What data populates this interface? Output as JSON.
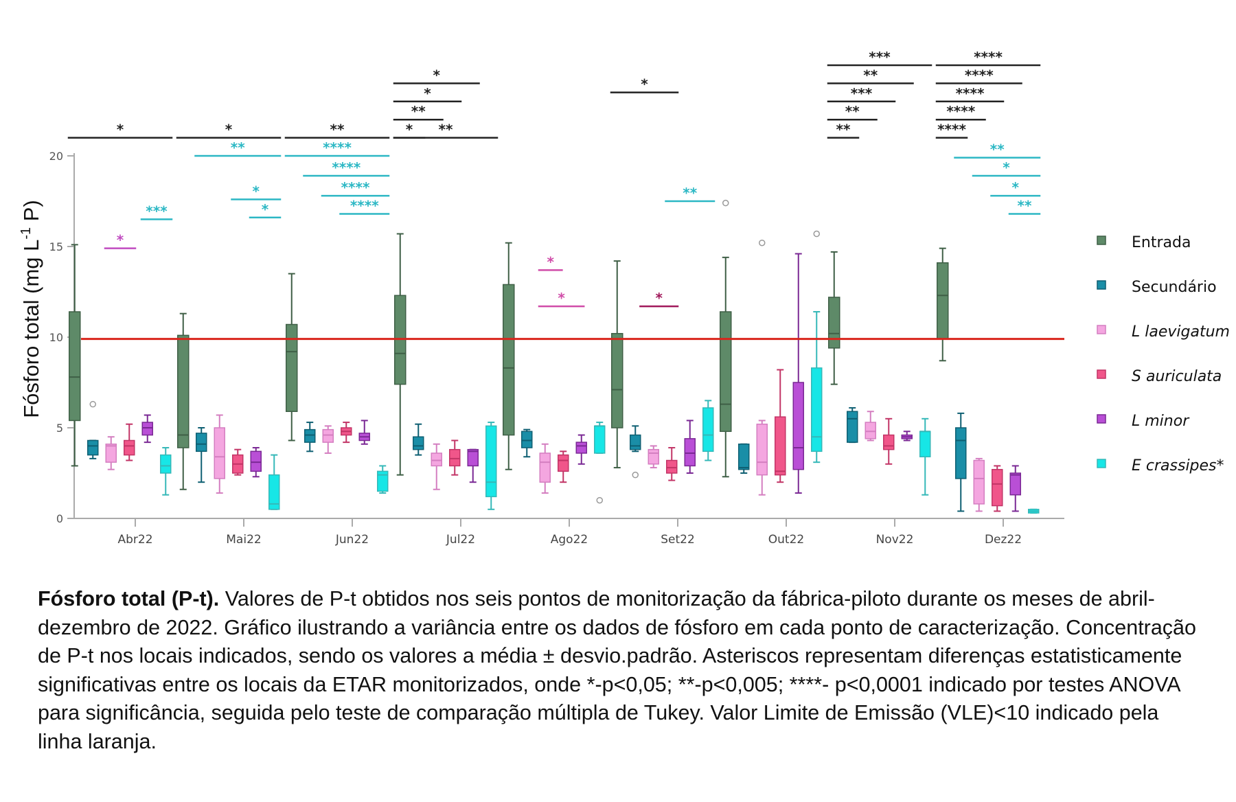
{
  "chart_data": {
    "type": "boxplot",
    "title": "",
    "ylabel": "Fósforo total (mg L-1 P)",
    "ylabel_parts": {
      "main": "Fósforo total (mg L",
      "sup": "-1",
      "end": " P)"
    },
    "xlabel": "",
    "ylim": [
      0,
      20
    ],
    "yticks": [
      0,
      5,
      10,
      15,
      20
    ],
    "grid": false,
    "legend_position": "right",
    "reference_line": {
      "value": 9.9,
      "label": "VLE<10",
      "color": "#d9261c"
    },
    "categories": [
      "Abr22",
      "Mai22",
      "Jun22",
      "Jul22",
      "Ago22",
      "Set22",
      "Out22",
      "Nov22",
      "Dez22"
    ],
    "series": [
      {
        "name": "Entrada",
        "italic": false,
        "color": "#5e8a68",
        "stroke": "#3f5f46",
        "boxes": [
          {
            "min": 2.9,
            "q1": 5.4,
            "median": 7.8,
            "q3": 11.4,
            "max": 15.1
          },
          {
            "min": 1.6,
            "q1": 3.9,
            "median": 4.6,
            "q3": 10.1,
            "max": 11.3
          },
          {
            "min": 4.3,
            "q1": 5.9,
            "median": 9.2,
            "q3": 10.7,
            "max": 13.5
          },
          {
            "min": 2.4,
            "q1": 7.4,
            "median": 9.1,
            "q3": 12.3,
            "max": 15.7
          },
          {
            "min": 2.7,
            "q1": 4.6,
            "median": 8.3,
            "q3": 12.9,
            "max": 15.2
          },
          {
            "min": 2.8,
            "q1": 5.0,
            "median": 7.1,
            "q3": 10.2,
            "max": 14.2
          },
          {
            "min": 2.3,
            "q1": 4.8,
            "median": 6.3,
            "q3": 11.4,
            "max": 14.4
          },
          {
            "min": 7.4,
            "q1": 9.4,
            "median": 10.2,
            "q3": 12.2,
            "max": 14.7
          },
          {
            "min": 8.7,
            "q1": 9.9,
            "median": 12.3,
            "q3": 14.1,
            "max": 14.9
          }
        ],
        "outliers": [
          [],
          [],
          [],
          [],
          [],
          [],
          [
            17.4
          ],
          [],
          []
        ]
      },
      {
        "name": "Secundário",
        "italic": false,
        "color": "#1a8ea7",
        "stroke": "#0e5f72",
        "boxes": [
          {
            "min": 3.3,
            "q1": 3.5,
            "median": 4.0,
            "q3": 4.3,
            "max": 4.3
          },
          {
            "min": 2.0,
            "q1": 3.7,
            "median": 4.1,
            "q3": 4.7,
            "max": 5.0
          },
          {
            "min": 3.7,
            "q1": 4.2,
            "median": 4.6,
            "q3": 4.9,
            "max": 5.3
          },
          {
            "min": 3.5,
            "q1": 3.8,
            "median": 4.0,
            "q3": 4.5,
            "max": 5.2
          },
          {
            "min": 3.4,
            "q1": 3.9,
            "median": 4.3,
            "q3": 4.8,
            "max": 4.9
          },
          {
            "min": 3.7,
            "q1": 3.8,
            "median": 4.0,
            "q3": 4.6,
            "max": 5.1
          },
          {
            "min": 2.5,
            "q1": 2.7,
            "median": 2.8,
            "q3": 4.1,
            "max": 4.1
          },
          {
            "min": 4.2,
            "q1": 4.2,
            "median": 5.5,
            "q3": 5.9,
            "max": 6.1
          },
          {
            "min": 0.4,
            "q1": 2.2,
            "median": 4.3,
            "q3": 5.0,
            "max": 5.8
          }
        ],
        "outliers": [
          [
            6.3
          ],
          [],
          [],
          [],
          [],
          [
            2.4
          ],
          [],
          [],
          []
        ]
      },
      {
        "name": "L laevigatum",
        "italic": true,
        "color": "#f4a6e0",
        "stroke": "#d47ec0",
        "boxes": [
          {
            "min": 2.7,
            "q1": 3.1,
            "median": 4.0,
            "q3": 4.1,
            "max": 4.5
          },
          {
            "min": 1.4,
            "q1": 2.2,
            "median": 3.4,
            "q3": 5.0,
            "max": 5.7
          },
          {
            "min": 3.6,
            "q1": 4.2,
            "median": 4.6,
            "q3": 4.9,
            "max": 5.1
          },
          {
            "min": 1.6,
            "q1": 2.9,
            "median": 3.2,
            "q3": 3.6,
            "max": 4.1
          },
          {
            "min": 1.4,
            "q1": 2.0,
            "median": 3.1,
            "q3": 3.6,
            "max": 4.1
          },
          {
            "min": 2.8,
            "q1": 3.0,
            "median": 3.6,
            "q3": 3.8,
            "max": 4.0
          },
          {
            "min": 1.3,
            "q1": 2.4,
            "median": 3.1,
            "q3": 5.2,
            "max": 5.4
          },
          {
            "min": 4.3,
            "q1": 4.4,
            "median": 4.8,
            "q3": 5.3,
            "max": 5.9
          },
          {
            "min": 0.4,
            "q1": 0.8,
            "median": 2.2,
            "q3": 3.2,
            "max": 3.3
          }
        ],
        "outliers": [
          [],
          [],
          [],
          [],
          [],
          [],
          [
            15.2
          ],
          [],
          []
        ]
      },
      {
        "name": "S auriculata",
        "italic": true,
        "color": "#f0568a",
        "stroke": "#c23466",
        "boxes": [
          {
            "min": 3.2,
            "q1": 3.5,
            "median": 4.0,
            "q3": 4.3,
            "max": 5.2
          },
          {
            "min": 2.4,
            "q1": 2.5,
            "median": 3.0,
            "q3": 3.5,
            "max": 3.8
          },
          {
            "min": 4.2,
            "q1": 4.6,
            "median": 4.8,
            "q3": 5.0,
            "max": 5.3
          },
          {
            "min": 2.4,
            "q1": 2.9,
            "median": 3.3,
            "q3": 3.8,
            "max": 4.3
          },
          {
            "min": 2.0,
            "q1": 2.6,
            "median": 3.2,
            "q3": 3.5,
            "max": 3.7
          },
          {
            "min": 2.1,
            "q1": 2.5,
            "median": 2.8,
            "q3": 3.2,
            "max": 3.9
          },
          {
            "min": 2.0,
            "q1": 2.4,
            "median": 2.6,
            "q3": 5.6,
            "max": 8.2
          },
          {
            "min": 3.0,
            "q1": 3.8,
            "median": 4.0,
            "q3": 4.6,
            "max": 5.5
          },
          {
            "min": 0.4,
            "q1": 0.7,
            "median": 1.9,
            "q3": 2.7,
            "max": 2.9
          }
        ],
        "outliers": [
          [],
          [],
          [],
          [],
          [],
          [],
          [],
          [],
          []
        ]
      },
      {
        "name": "L minor",
        "italic": true,
        "color": "#b94fd6",
        "stroke": "#7a2894",
        "boxes": [
          {
            "min": 4.2,
            "q1": 4.6,
            "median": 5.0,
            "q3": 5.3,
            "max": 5.7
          },
          {
            "min": 2.3,
            "q1": 2.6,
            "median": 3.1,
            "q3": 3.7,
            "max": 3.9
          },
          {
            "min": 4.1,
            "q1": 4.3,
            "median": 4.5,
            "q3": 4.7,
            "max": 5.4
          },
          {
            "min": 2.0,
            "q1": 2.9,
            "median": 3.7,
            "q3": 3.8,
            "max": 3.8
          },
          {
            "min": 3.0,
            "q1": 3.6,
            "median": 4.0,
            "q3": 4.2,
            "max": 4.6
          },
          {
            "min": 2.5,
            "q1": 2.9,
            "median": 3.6,
            "q3": 4.4,
            "max": 5.4
          },
          {
            "min": 1.4,
            "q1": 2.7,
            "median": 3.9,
            "q3": 7.5,
            "max": 14.6
          },
          {
            "min": 4.3,
            "q1": 4.4,
            "median": 4.5,
            "q3": 4.6,
            "max": 4.8
          },
          {
            "min": 0.4,
            "q1": 1.3,
            "median": 2.4,
            "q3": 2.5,
            "max": 2.9
          }
        ],
        "outliers": [
          [],
          [],
          [],
          [],
          [],
          [],
          [],
          [],
          []
        ]
      },
      {
        "name": "E crassipes*",
        "italic": true,
        "color": "#17e6e6",
        "stroke": "#35b8b8",
        "boxes": [
          {
            "min": 1.3,
            "q1": 2.5,
            "median": 2.9,
            "q3": 3.5,
            "max": 3.9
          },
          {
            "min": 0.5,
            "q1": 0.5,
            "median": 0.8,
            "q3": 2.4,
            "max": 3.5
          },
          {
            "min": 1.4,
            "q1": 1.5,
            "median": 2.4,
            "q3": 2.6,
            "max": 2.9
          },
          {
            "min": 0.5,
            "q1": 1.2,
            "median": 2.0,
            "q3": 5.1,
            "max": 5.3
          },
          {
            "min": 3.6,
            "q1": 3.6,
            "median": 5.1,
            "q3": 5.1,
            "max": 5.3
          },
          {
            "min": 3.2,
            "q1": 3.7,
            "median": 4.6,
            "q3": 6.1,
            "max": 6.5
          },
          {
            "min": 3.1,
            "q1": 3.7,
            "median": 4.5,
            "q3": 8.3,
            "max": 11.4
          },
          {
            "min": 1.3,
            "q1": 3.4,
            "median": 4.8,
            "q3": 4.8,
            "max": 5.5
          },
          {
            "min": 0.3,
            "q1": 0.3,
            "median": 0.4,
            "q3": 0.5,
            "max": 0.5
          }
        ],
        "outliers": [
          [],
          [],
          [],
          [],
          [
            1.0
          ],
          [],
          [
            15.7
          ],
          [],
          []
        ]
      }
    ],
    "significance": [
      {
        "month": "Abr22",
        "color": "#222222",
        "marks": [
          {
            "stars": "*",
            "from": 0,
            "to": 5,
            "level": 21.0
          }
        ]
      },
      {
        "month": "Mai22",
        "color": "#222222",
        "marks": [
          {
            "stars": "*",
            "from": 0,
            "to": 5,
            "level": 21.0
          }
        ]
      },
      {
        "month": "Jun22",
        "color": "#222222",
        "marks": [
          {
            "stars": "**",
            "from": 0,
            "to": 5,
            "level": 21.0
          }
        ]
      },
      {
        "month": "Jul22",
        "color": "#222222",
        "marks": [
          {
            "stars": "**",
            "from": 0,
            "to": 5,
            "level": 21.0
          },
          {
            "stars": "*",
            "from": 0,
            "to": 4,
            "level": 24.0
          },
          {
            "stars": "*",
            "from": 0,
            "to": 3,
            "level": 23.0
          },
          {
            "stars": "**",
            "from": 0,
            "to": 2,
            "level": 22.0
          },
          {
            "stars": "*",
            "from": 0,
            "to": 1,
            "level": 21.0
          }
        ]
      },
      {
        "month": "Set22",
        "color": "#222222",
        "marks": [
          {
            "stars": "*",
            "from": 0,
            "to": 3,
            "level": 23.5
          }
        ]
      },
      {
        "month": "Nov22",
        "color": "#222222",
        "marks": [
          {
            "stars": "***",
            "from": 0,
            "to": 5,
            "level": 25.0
          },
          {
            "stars": "**",
            "from": 0,
            "to": 4,
            "level": 24.0
          },
          {
            "stars": "***",
            "from": 0,
            "to": 3,
            "level": 23.0
          },
          {
            "stars": "**",
            "from": 0,
            "to": 2,
            "level": 22.0
          },
          {
            "stars": "**",
            "from": 0,
            "to": 1,
            "level": 21.0
          }
        ]
      },
      {
        "month": "Dez22",
        "color": "#222222",
        "marks": [
          {
            "stars": "****",
            "from": 0,
            "to": 5,
            "level": 25.0
          },
          {
            "stars": "****",
            "from": 0,
            "to": 4,
            "level": 24.0
          },
          {
            "stars": "****",
            "from": 0,
            "to": 3,
            "level": 23.0
          },
          {
            "stars": "****",
            "from": 0,
            "to": 2,
            "level": 22.0
          },
          {
            "stars": "****",
            "from": 0,
            "to": 1,
            "level": 21.0
          }
        ]
      },
      {
        "month": "Abr22",
        "color": "#2bb7c4",
        "marks": [
          {
            "stars": "***",
            "from": 4,
            "to": 5,
            "level": 16.5
          }
        ]
      },
      {
        "month": "Mai22",
        "color": "#2bb7c4",
        "marks": [
          {
            "stars": "**",
            "from": 1,
            "to": 5,
            "level": 20.0
          },
          {
            "stars": "*",
            "from": 3,
            "to": 5,
            "level": 17.6
          },
          {
            "stars": "*",
            "from": 4,
            "to": 5,
            "level": 16.6
          }
        ]
      },
      {
        "month": "Jun22",
        "color": "#2bb7c4",
        "marks": [
          {
            "stars": "****",
            "from": 0,
            "to": 5,
            "level": 20.0
          },
          {
            "stars": "****",
            "from": 1,
            "to": 5,
            "level": 18.9
          },
          {
            "stars": "****",
            "from": 2,
            "to": 5,
            "level": 17.8
          },
          {
            "stars": "****",
            "from": 3,
            "to": 5,
            "level": 16.8
          }
        ]
      },
      {
        "month": "Set22",
        "color": "#2bb7c4",
        "marks": [
          {
            "stars": "**",
            "from": 3,
            "to": 5,
            "level": 17.5
          }
        ]
      },
      {
        "month": "Dez22",
        "color": "#2bb7c4",
        "marks": [
          {
            "stars": "**",
            "from": 1,
            "to": 5,
            "level": 19.9
          },
          {
            "stars": "*",
            "from": 2,
            "to": 5,
            "level": 18.9
          },
          {
            "stars": "*",
            "from": 3,
            "to": 5,
            "level": 17.8
          },
          {
            "stars": "**",
            "from": 4,
            "to": 5,
            "level": 16.8
          }
        ]
      },
      {
        "month": "Abr22",
        "color": "#c04bc0",
        "marks": [
          {
            "stars": "*",
            "from": 2,
            "to": 3,
            "level": 14.9
          }
        ]
      },
      {
        "month": "Ago22",
        "color": "#d04ba8",
        "marks": [
          {
            "stars": "*",
            "from": 2,
            "to": 2.6,
            "level": 13.7
          },
          {
            "stars": "*",
            "from": 2,
            "to": 3.8,
            "level": 11.7
          }
        ]
      },
      {
        "month": "Set22",
        "color": "#a0185a",
        "marks": [
          {
            "stars": "*",
            "from": 1.6,
            "to": 3.0,
            "level": 11.7
          }
        ]
      }
    ]
  },
  "caption": {
    "bold": "Fósforo total (P-t).",
    "text": " Valores de P-t obtidos nos seis pontos de monitorização da fábrica-piloto durante os meses de abril-dezembro de 2022. Gráfico ilustrando a variância entre os dados de fósforo em cada ponto de caracterização. Concentração de P-t nos locais indicados, sendo os valores a média ± desvio.padrão. Asteriscos representam diferenças estatisticamente significativas entre os locais da ETAR monitorizados, onde *-p<0,05; **-p<0,005; ****- p<0,0001 indicado por testes ANOVA para significância, seguida pelo teste de comparação múltipla de Tukey. Valor Limite de Emissão (VLE)<10 indicado pela linha laranja."
  }
}
